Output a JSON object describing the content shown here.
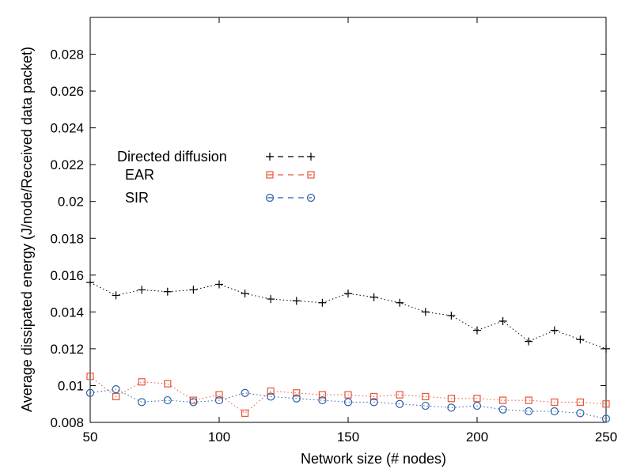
{
  "chart_data": {
    "type": "line",
    "xlabel": "Network size (# nodes)",
    "ylabel": "Average dissipated energy (J/node/Received data packet)",
    "xlim": [
      50,
      250
    ],
    "ylim": [
      0.008,
      0.03
    ],
    "x_ticks": [
      {
        "value": 50,
        "label": "50"
      },
      {
        "value": 100,
        "label": "100"
      },
      {
        "value": 150,
        "label": "150"
      },
      {
        "value": 200,
        "label": "200"
      },
      {
        "value": 250,
        "label": "250"
      }
    ],
    "y_ticks": [
      {
        "value": 0.008,
        "label": "0.008"
      },
      {
        "value": 0.01,
        "label": "0.01"
      },
      {
        "value": 0.012,
        "label": "0.012"
      },
      {
        "value": 0.014,
        "label": "0.014"
      },
      {
        "value": 0.016,
        "label": "0.016"
      },
      {
        "value": 0.018,
        "label": "0.018"
      },
      {
        "value": 0.02,
        "label": "0.02"
      },
      {
        "value": 0.022,
        "label": "0.022"
      },
      {
        "value": 0.024,
        "label": "0.024"
      },
      {
        "value": 0.026,
        "label": "0.026"
      },
      {
        "value": 0.028,
        "label": "0.028"
      }
    ],
    "grid": false,
    "legend_position": "upper-left",
    "x": [
      50,
      60,
      70,
      80,
      90,
      100,
      110,
      120,
      130,
      140,
      150,
      160,
      170,
      180,
      190,
      200,
      210,
      220,
      230,
      240,
      250
    ],
    "series": [
      {
        "name": "Directed diffusion",
        "color": "#000000",
        "marker": "plus",
        "values": [
          0.0156,
          0.0149,
          0.0152,
          0.0151,
          0.0152,
          0.0155,
          0.015,
          0.0147,
          0.0146,
          0.0145,
          0.015,
          0.0148,
          0.0145,
          0.014,
          0.0138,
          0.013,
          0.0135,
          0.0124,
          0.013,
          0.0125,
          0.012
        ]
      },
      {
        "name": "EAR",
        "color": "#e8553a",
        "marker": "square",
        "values": [
          0.0105,
          0.0094,
          0.0102,
          0.0101,
          0.0092,
          0.0095,
          0.0085,
          0.0097,
          0.0096,
          0.0095,
          0.0095,
          0.0094,
          0.0095,
          0.0094,
          0.0093,
          0.0093,
          0.0092,
          0.0092,
          0.0091,
          0.0091,
          0.009
        ]
      },
      {
        "name": "SIR",
        "color": "#2c5fa8",
        "marker": "circle",
        "values": [
          0.0096,
          0.0098,
          0.0091,
          0.0092,
          0.0091,
          0.0092,
          0.0096,
          0.0094,
          0.0093,
          0.0092,
          0.0091,
          0.0091,
          0.009,
          0.0089,
          0.0088,
          0.0089,
          0.0087,
          0.0086,
          0.0086,
          0.0085,
          0.0082
        ]
      }
    ]
  }
}
